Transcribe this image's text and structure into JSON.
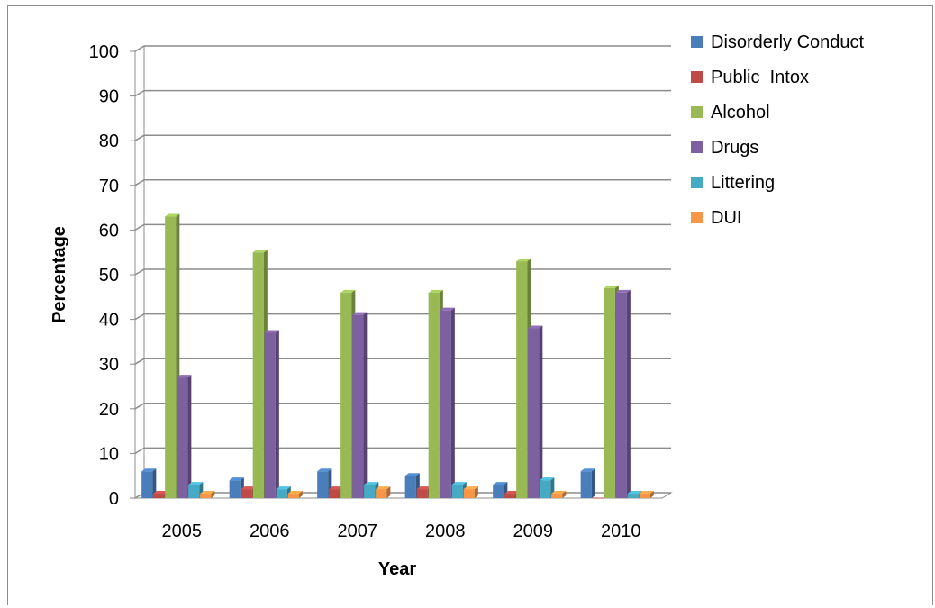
{
  "chart_data": {
    "type": "bar",
    "title": "",
    "xlabel": "Year",
    "ylabel": "Percentage",
    "categories": [
      "2005",
      "2006",
      "2007",
      "2008",
      "2009",
      "2010"
    ],
    "ylim": [
      0,
      100
    ],
    "yticks": [
      0,
      10,
      20,
      30,
      40,
      50,
      60,
      70,
      80,
      90,
      100
    ],
    "grid": true,
    "legend_position": "right",
    "series": [
      {
        "name": "Disorderly Conduct",
        "color": "#4a7ebb",
        "values": [
          6,
          4,
          6,
          5,
          3,
          6
        ]
      },
      {
        "name": "Public  Intox",
        "color": "#be4b48",
        "values": [
          1,
          2,
          2,
          2,
          1,
          0
        ]
      },
      {
        "name": "Alcohol",
        "color": "#98b954",
        "values": [
          63,
          55,
          46,
          46,
          53,
          47
        ]
      },
      {
        "name": "Drugs",
        "color": "#7d60a0",
        "values": [
          27,
          37,
          41,
          42,
          38,
          46
        ]
      },
      {
        "name": "Littering",
        "color": "#46aac5",
        "values": [
          3,
          2,
          3,
          3,
          4,
          1
        ]
      },
      {
        "name": "DUI",
        "color": "#f79646",
        "values": [
          1,
          1,
          2,
          2,
          1,
          1
        ]
      }
    ]
  }
}
